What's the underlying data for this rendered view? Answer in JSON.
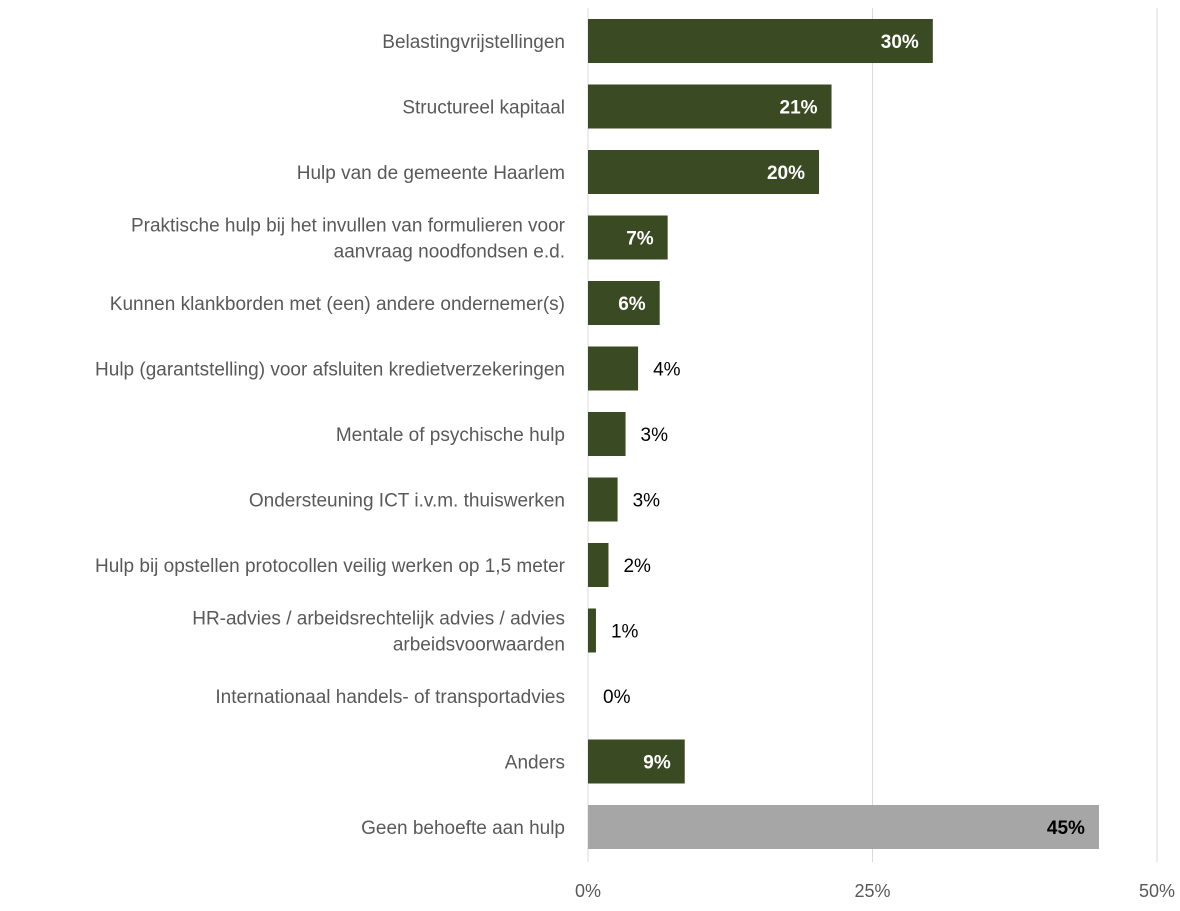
{
  "chart_data": {
    "type": "bar",
    "orientation": "horizontal",
    "categories": [
      "Belastingvrijstellingen",
      "Structureel kapitaal",
      "Hulp van de gemeente Haarlem",
      "Praktische hulp bij het invullen van formulieren voor aanvraag noodfondsen e.d.",
      "Kunnen klankborden met (een) andere ondernemer(s)",
      "Hulp (garantstelling) voor afsluiten kredietverzekeringen",
      "Mentale of psychische hulp",
      "Ondersteuning ICT i.v.m. thuiswerken",
      "Hulp bij opstellen protocollen veilig werken op 1,5 meter",
      "HR-advies / arbeidsrechtelijk advies / advies arbeidsvoorwaarden",
      "Internationaal handels- of transportadvies",
      "Anders",
      "Geen behoefte aan hulp"
    ],
    "category_lines": [
      [
        "Belastingvrijstellingen"
      ],
      [
        "Structureel kapitaal"
      ],
      [
        "Hulp van de gemeente Haarlem"
      ],
      [
        "Praktische hulp bij het invullen van formulieren voor",
        "aanvraag noodfondsen e.d."
      ],
      [
        "Kunnen klankborden met (een) andere ondernemer(s)"
      ],
      [
        "Hulp (garantstelling) voor afsluiten kredietverzekeringen"
      ],
      [
        "Mentale of psychische hulp"
      ],
      [
        "Ondersteuning ICT i.v.m. thuiswerken"
      ],
      [
        "Hulp bij opstellen protocollen veilig werken op 1,5 meter"
      ],
      [
        "HR-advies / arbeidsrechtelijk advies / advies",
        "arbeidsvoorwaarden"
      ],
      [
        "Internationaal handels- of transportadvies"
      ],
      [
        "Anders"
      ],
      [
        "Geen behoefte aan hulp"
      ]
    ],
    "values": [
      30.3,
      21.4,
      20.3,
      7.0,
      6.3,
      4.4,
      3.3,
      2.6,
      1.8,
      0.7,
      0.0,
      8.5,
      44.9
    ],
    "data_labels": [
      "30%",
      "21%",
      "20%",
      "7%",
      "6%",
      "4%",
      "3%",
      "3%",
      "2%",
      "1%",
      "0%",
      "9%",
      "45%"
    ],
    "bar_colors": [
      "#3a4a22",
      "#3a4a22",
      "#3a4a22",
      "#3a4a22",
      "#3a4a22",
      "#3a4a22",
      "#3a4a22",
      "#3a4a22",
      "#3a4a22",
      "#3a4a22",
      "#3a4a22",
      "#3a4a22",
      "#a6a6a6"
    ],
    "xlim": [
      0,
      50
    ],
    "xticks": [
      0,
      25,
      50
    ],
    "xtick_labels": [
      "0%",
      "25%",
      "50%"
    ],
    "grid": true,
    "title": "",
    "xlabel": "",
    "ylabel": ""
  },
  "colors": {
    "bar_primary": "#3a4a22",
    "bar_secondary": "#a6a6a6",
    "gridline": "#d9d9d9",
    "category_text": "#595959",
    "label_inside": "#ffffff",
    "label_outside": "#000000",
    "label_on_grey": "#000000"
  }
}
